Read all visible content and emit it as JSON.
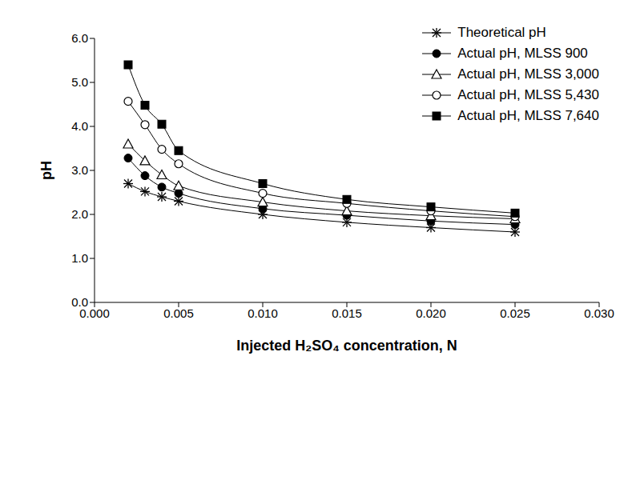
{
  "chart_data": {
    "type": "line",
    "x_label": "Injected H₂SO₄ concentration, N",
    "y_label": "pH",
    "x": [
      0.002,
      0.003,
      0.004,
      0.005,
      0.01,
      0.015,
      0.02,
      0.025
    ],
    "series": [
      {
        "name": "Theoretical pH",
        "color": "#000000",
        "marker": "asterisk",
        "values": [
          2.7,
          2.52,
          2.4,
          2.3,
          2.0,
          1.82,
          1.7,
          1.6
        ]
      },
      {
        "name": "Actual pH, MLSS 900",
        "color": "#000000",
        "marker": "filled_circle",
        "values": [
          3.28,
          2.88,
          2.62,
          2.48,
          2.13,
          1.98,
          1.85,
          1.77
        ]
      },
      {
        "name": "Actual pH, MLSS 3,000",
        "color": "#000000",
        "marker": "open_triangle",
        "values": [
          3.6,
          3.22,
          2.9,
          2.65,
          2.28,
          2.08,
          1.97,
          1.9
        ]
      },
      {
        "name": "Actual pH, MLSS 5,430",
        "color": "#000000",
        "marker": "open_circle",
        "values": [
          4.57,
          4.04,
          3.48,
          3.15,
          2.48,
          2.25,
          2.08,
          1.95
        ]
      },
      {
        "name": "Actual pH, MLSS 7,640",
        "color": "#000000",
        "marker": "filled_square",
        "values": [
          5.4,
          4.48,
          4.05,
          3.45,
          2.7,
          2.34,
          2.17,
          2.03
        ]
      }
    ],
    "xlim": [
      0,
      0.03
    ],
    "xticks": [
      {
        "value": 0,
        "label": "0.000"
      },
      {
        "value": 0.005,
        "label": "0.005"
      },
      {
        "value": 0.01,
        "label": "0.010"
      },
      {
        "value": 0.015,
        "label": "0.015"
      },
      {
        "value": 0.02,
        "label": "0.020"
      },
      {
        "value": 0.025,
        "label": "0.025"
      },
      {
        "value": 0.03,
        "label": "0.030"
      }
    ],
    "ylim": [
      0,
      6
    ],
    "yticks": [
      {
        "value": 0,
        "label": "0.0"
      },
      {
        "value": 1,
        "label": "1.0"
      },
      {
        "value": 2,
        "label": "2.0"
      },
      {
        "value": 3,
        "label": "3.0"
      },
      {
        "value": 4,
        "label": "4.0"
      },
      {
        "value": 5,
        "label": "5.0"
      },
      {
        "value": 6,
        "label": "6.0"
      }
    ],
    "grid": false,
    "legend": "upper right"
  }
}
